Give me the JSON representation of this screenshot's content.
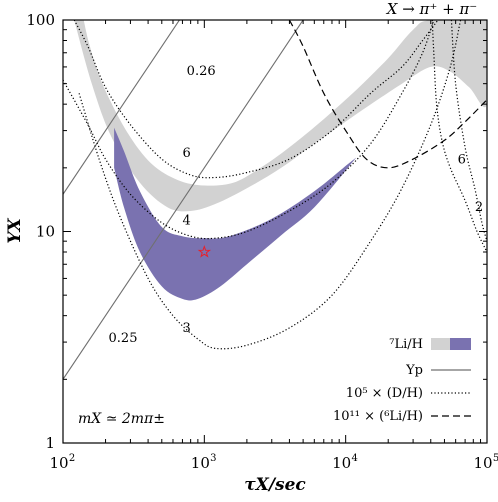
{
  "chart_data": {
    "type": "line",
    "title": "X → π⁺ + π⁻",
    "xlabel": "τX/sec",
    "ylabel": "YX",
    "xscale": "log",
    "yscale": "log",
    "xlim": [
      100,
      100000
    ],
    "ylim": [
      1,
      100
    ],
    "x_ticks": [
      {
        "value": 100,
        "base": "10",
        "exp": "2"
      },
      {
        "value": 1000,
        "base": "10",
        "exp": "3"
      },
      {
        "value": 10000,
        "base": "10",
        "exp": "4"
      },
      {
        "value": 100000,
        "base": "10",
        "exp": "5"
      }
    ],
    "y_ticks": [
      {
        "value": 1,
        "label": "1"
      },
      {
        "value": 10,
        "label": "10"
      },
      {
        "value": 100,
        "label": "100"
      }
    ],
    "mass_annotation": "mX ≃ 2mπ±",
    "legend_position": "bottom-right",
    "legend": [
      {
        "label": "⁷Li/H",
        "style": "band",
        "colors": [
          "#d2d2d2",
          "#7a72b0"
        ]
      },
      {
        "label": "Yp",
        "style": "solid",
        "color": "#707070"
      },
      {
        "label": "10⁵ × (D/H)",
        "style": "dotted",
        "color": "#000000"
      },
      {
        "label": "10¹¹ × (⁶Li/H)",
        "style": "dashed",
        "color": "#000000"
      }
    ],
    "li7_band": {
      "color": "#d2d2d2",
      "lower": [
        [
          120,
          100
        ],
        [
          160,
          50
        ],
        [
          220,
          28
        ],
        [
          350,
          17
        ],
        [
          550,
          13
        ],
        [
          800,
          12.5
        ],
        [
          1200,
          13.5
        ],
        [
          2000,
          16
        ],
        [
          3500,
          20
        ],
        [
          6000,
          26
        ],
        [
          12000,
          36
        ],
        [
          25000,
          50
        ],
        [
          40000,
          60
        ],
        [
          55000,
          57
        ],
        [
          75000,
          48
        ],
        [
          100000,
          40
        ]
      ],
      "upper": [
        [
          100000,
          100
        ],
        [
          40000,
          100
        ],
        [
          30000,
          90
        ],
        [
          20000,
          66
        ],
        [
          12000,
          47
        ],
        [
          7000,
          34
        ],
        [
          4000,
          25
        ],
        [
          2500,
          20
        ],
        [
          1600,
          17
        ],
        [
          1000,
          16.5
        ],
        [
          650,
          17.5
        ],
        [
          420,
          21
        ],
        [
          280,
          30
        ],
        [
          190,
          50
        ],
        [
          155,
          75
        ],
        [
          140,
          100
        ]
      ]
    },
    "allowed_region": {
      "color": "#7a72b0",
      "boundary": [
        [
          230,
          31
        ],
        [
          270,
          24
        ],
        [
          350,
          15.5
        ],
        [
          500,
          10.5
        ],
        [
          700,
          9.5
        ],
        [
          1000,
          9.3
        ],
        [
          1500,
          9.5
        ],
        [
          3000,
          11.5
        ],
        [
          6000,
          15.5
        ],
        [
          11000,
          21.5
        ],
        [
          11000,
          21
        ],
        [
          6000,
          13
        ],
        [
          3500,
          9.6
        ],
        [
          2000,
          7
        ],
        [
          1300,
          5.5
        ],
        [
          900,
          4.8
        ],
        [
          700,
          4.8
        ],
        [
          500,
          5.5
        ],
        [
          350,
          8
        ],
        [
          270,
          13
        ],
        [
          230,
          20
        ]
      ]
    },
    "best_fit_point": {
      "x": 1000,
      "y": 8,
      "marker": "star",
      "color": "#e8202a"
    },
    "series": [
      {
        "label": "0.26",
        "style": "solid",
        "color": "#707070",
        "points": [
          [
            100,
            15
          ],
          [
            300,
            45
          ],
          [
            1000,
            150
          ]
        ]
      },
      {
        "label": "0.25",
        "style": "solid",
        "color": "#707070",
        "points": [
          [
            100,
            2
          ],
          [
            1000,
            20
          ],
          [
            3000,
            60
          ],
          [
            10000,
            200
          ]
        ]
      },
      {
        "label": "6",
        "style": "dotted",
        "color": "#000000",
        "points": [
          [
            120,
            100
          ],
          [
            150,
            75
          ],
          [
            200,
            48
          ],
          [
            300,
            32
          ],
          [
            500,
            22
          ],
          [
            800,
            18.5
          ],
          [
            1200,
            18
          ],
          [
            2000,
            19
          ],
          [
            4000,
            22
          ],
          [
            8000,
            30
          ],
          [
            15000,
            45
          ],
          [
            25000,
            60
          ],
          [
            35000,
            80
          ],
          [
            45000,
            100
          ]
        ]
      },
      {
        "label": "4",
        "style": "dotted",
        "color": "#000000",
        "points": [
          [
            100,
            52
          ],
          [
            150,
            32
          ],
          [
            200,
            22
          ],
          [
            300,
            15
          ],
          [
            500,
            11
          ],
          [
            800,
            9.5
          ],
          [
            1200,
            9.3
          ],
          [
            2000,
            10
          ],
          [
            4000,
            12.5
          ],
          [
            8000,
            17
          ],
          [
            15000,
            26
          ],
          [
            25000,
            45
          ],
          [
            35000,
            70
          ],
          [
            42000,
            100
          ]
        ]
      },
      {
        "label": "3",
        "style": "dotted",
        "color": "#000000",
        "points": [
          [
            130,
            45
          ],
          [
            180,
            22
          ],
          [
            250,
            12
          ],
          [
            400,
            6
          ],
          [
            600,
            4
          ],
          [
            900,
            3.1
          ],
          [
            1200,
            2.8
          ],
          [
            2000,
            2.9
          ],
          [
            4000,
            3.5
          ],
          [
            8000,
            5
          ],
          [
            15000,
            9
          ],
          [
            25000,
            16
          ],
          [
            40000,
            32
          ],
          [
            55000,
            60
          ],
          [
            65000,
            100
          ]
        ]
      },
      {
        "label": "6",
        "style": "dotted",
        "color": "#000000",
        "points": [
          [
            41000,
            100
          ],
          [
            42000,
            70
          ],
          [
            44000,
            40
          ],
          [
            48000,
            27
          ],
          [
            55000,
            20
          ],
          [
            70000,
            14
          ],
          [
            85000,
            10
          ],
          [
            100000,
            8
          ]
        ]
      },
      {
        "label": "2",
        "style": "dotted",
        "color": "#000000",
        "points": [
          [
            56000,
            100
          ],
          [
            60000,
            50
          ],
          [
            70000,
            25
          ],
          [
            82000,
            16
          ],
          [
            92000,
            11
          ],
          [
            100000,
            9
          ]
        ]
      },
      {
        "label": "",
        "style": "dashed",
        "color": "#000000",
        "points": [
          [
            4000,
            100
          ],
          [
            5000,
            75
          ],
          [
            7000,
            45
          ],
          [
            10000,
            30
          ],
          [
            14000,
            22
          ],
          [
            20000,
            20
          ],
          [
            30000,
            22
          ],
          [
            50000,
            27
          ],
          [
            70000,
            33
          ],
          [
            100000,
            42
          ]
        ]
      }
    ],
    "curve_labels": [
      {
        "text": "0.26",
        "x": 750,
        "y": 55
      },
      {
        "text": "0.25",
        "x": 210,
        "y": 3.0
      },
      {
        "text": "6",
        "x": 700,
        "y": 22.5
      },
      {
        "text": "4",
        "x": 700,
        "y": 10.8
      },
      {
        "text": "3",
        "x": 700,
        "y": 3.35
      },
      {
        "text": "6",
        "x": 62000,
        "y": 21
      },
      {
        "text": "2",
        "x": 82000,
        "y": 12.5
      }
    ]
  }
}
